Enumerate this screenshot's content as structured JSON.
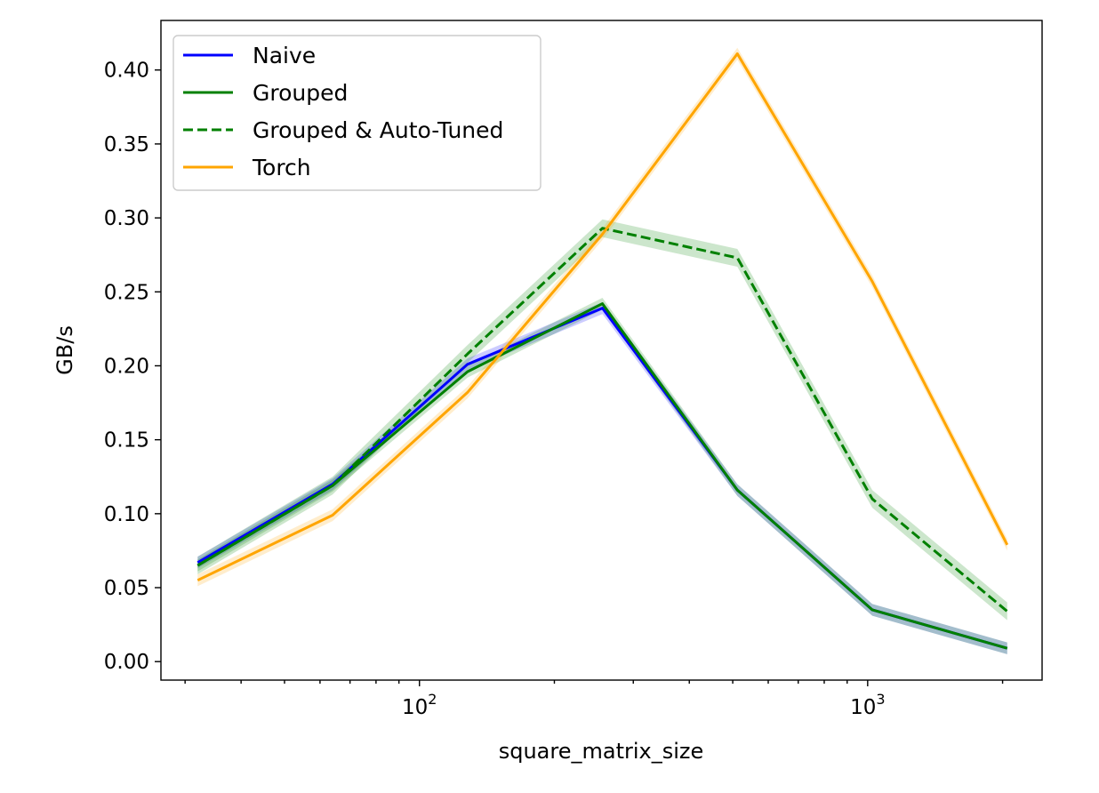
{
  "chart_data": {
    "type": "line",
    "xlabel": "square_matrix_size",
    "ylabel": "GB/s",
    "xscale": "log",
    "xlim": [
      26.5,
      2450
    ],
    "ylim": [
      -0.0125,
      0.4335
    ],
    "grid": false,
    "legend_position": "top-left",
    "x": [
      32,
      64,
      128,
      256,
      512,
      1024,
      2048
    ],
    "x_ticks": [
      {
        "value": 100,
        "base": "10",
        "exp": "2"
      },
      {
        "value": 1000,
        "base": "10",
        "exp": "3"
      }
    ],
    "y_ticks": [
      {
        "value": 0.0,
        "label": "0.00"
      },
      {
        "value": 0.05,
        "label": "0.05"
      },
      {
        "value": 0.1,
        "label": "0.10"
      },
      {
        "value": 0.15,
        "label": "0.15"
      },
      {
        "value": 0.2,
        "label": "0.20"
      },
      {
        "value": 0.25,
        "label": "0.25"
      },
      {
        "value": 0.3,
        "label": "0.30"
      },
      {
        "value": 0.35,
        "label": "0.35"
      },
      {
        "value": 0.4,
        "label": "0.40"
      }
    ],
    "series": [
      {
        "name": "Naive",
        "color": "#0000ff",
        "dashed": false,
        "band": 0.004,
        "values": [
          0.067,
          0.12,
          0.201,
          0.239,
          0.116,
          0.035,
          0.009
        ]
      },
      {
        "name": "Grouped",
        "color": "#008000",
        "dashed": false,
        "band": 0.004,
        "values": [
          0.065,
          0.119,
          0.196,
          0.242,
          0.116,
          0.035,
          0.009
        ]
      },
      {
        "name": "Grouped & Auto-Tuned",
        "color": "#008000",
        "dashed": true,
        "band": 0.006,
        "values": [
          0.065,
          0.119,
          0.208,
          0.293,
          0.273,
          0.11,
          0.034
        ]
      },
      {
        "name": "Torch",
        "color": "#ffa500",
        "dashed": false,
        "band": 0.004,
        "values": [
          0.055,
          0.099,
          0.182,
          0.289,
          0.411,
          0.257,
          0.079
        ]
      }
    ]
  }
}
